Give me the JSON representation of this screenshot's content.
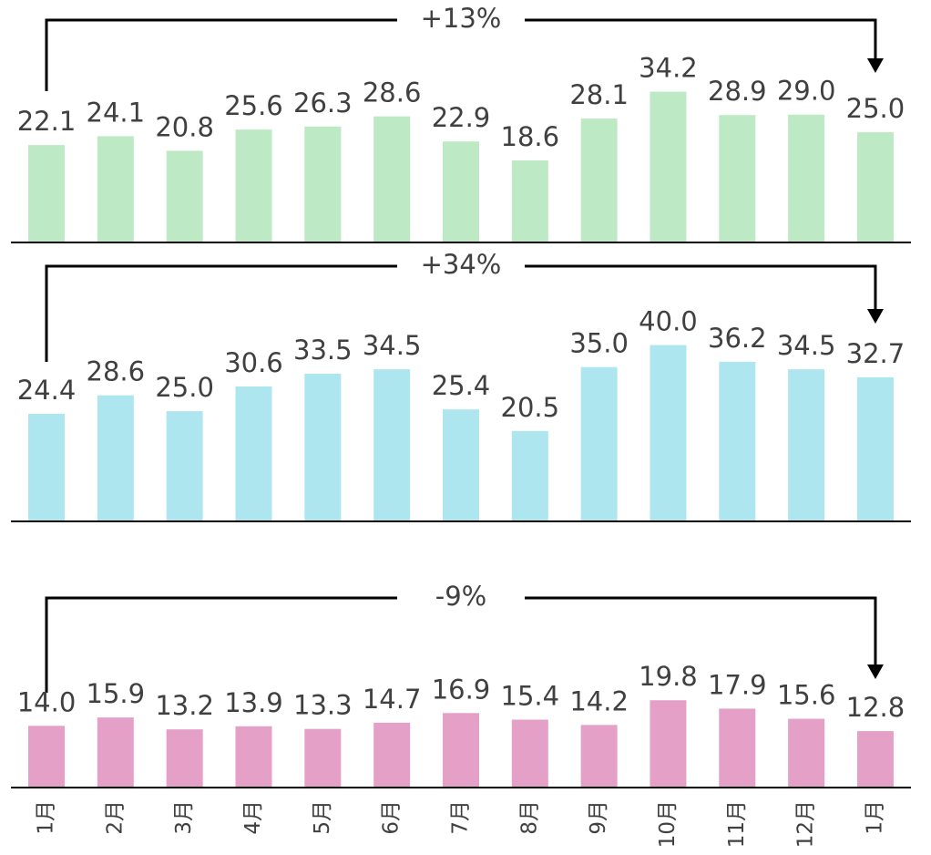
{
  "chart_data": [
    {
      "type": "bar",
      "annotation": "+13%",
      "color": "#bde9c4",
      "ylim": [
        0,
        55
      ],
      "values": [
        22.1,
        24.1,
        20.8,
        25.6,
        26.3,
        28.6,
        22.9,
        18.6,
        28.1,
        34.2,
        28.9,
        29.0,
        25.0
      ],
      "value_labels": [
        "22.1",
        "24.1",
        "20.8",
        "25.6",
        "26.3",
        "28.6",
        "22.9",
        "18.6",
        "28.1",
        "34.2",
        "28.9",
        "29.0",
        "25.0"
      ]
    },
    {
      "type": "bar",
      "annotation": "+34%",
      "color": "#aee6ef",
      "ylim": [
        0,
        55
      ],
      "values": [
        24.4,
        28.6,
        25.0,
        30.6,
        33.5,
        34.5,
        25.4,
        20.5,
        35.0,
        40.0,
        36.2,
        34.5,
        32.7
      ],
      "value_labels": [
        "24.4",
        "28.6",
        "25.0",
        "30.6",
        "33.5",
        "34.5",
        "25.4",
        "20.5",
        "35.0",
        "40.0",
        "36.2",
        "34.5",
        "32.7"
      ]
    },
    {
      "type": "bar",
      "annotation": "-9%",
      "color": "#e5a0c8",
      "ylim": [
        0,
        55
      ],
      "categories": [
        "1月",
        "2月",
        "3月",
        "4月",
        "5月",
        "6月",
        "7月",
        "8月",
        "9月",
        "10月",
        "11月",
        "12月",
        "1月"
      ],
      "values": [
        14.0,
        15.9,
        13.2,
        13.9,
        13.3,
        14.7,
        16.9,
        15.4,
        14.2,
        19.8,
        17.9,
        15.6,
        12.8
      ],
      "value_labels": [
        "14.0",
        "15.9",
        "13.2",
        "13.9",
        "13.3",
        "14.7",
        "16.9",
        "15.4",
        "14.2",
        "19.8",
        "17.9",
        "15.6",
        "12.8"
      ]
    }
  ]
}
